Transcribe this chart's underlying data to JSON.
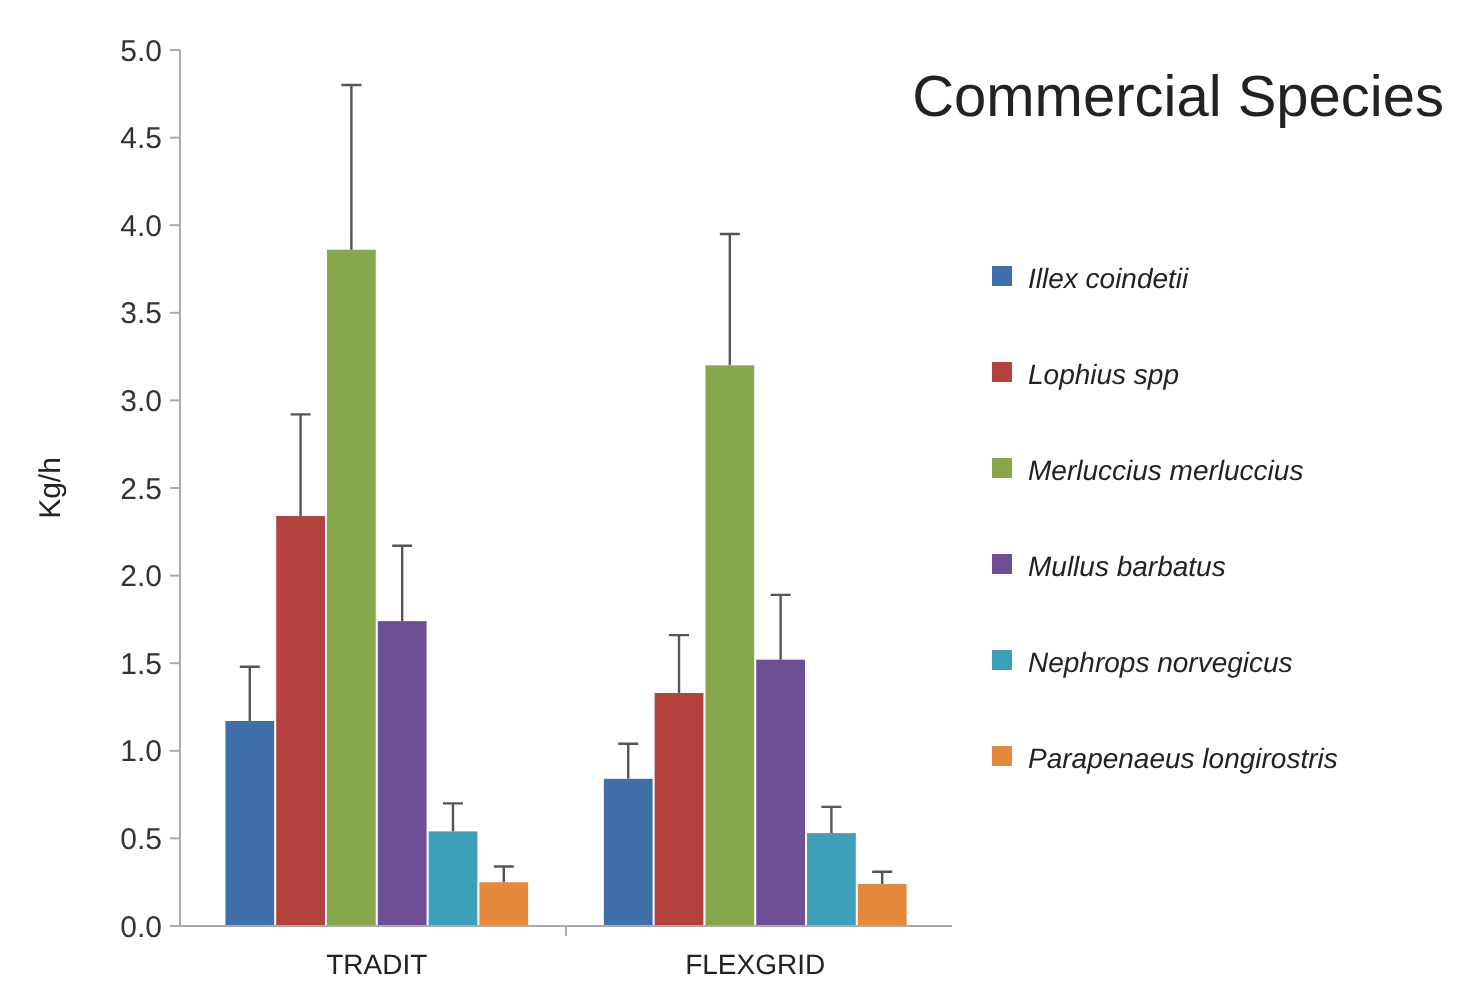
{
  "chart_data": {
    "type": "bar",
    "title": "Commercial Species",
    "ylabel": "Kg/h",
    "categories": [
      "TRADIT",
      "FLEXGRID"
    ],
    "series": [
      {
        "name": "Illex coindetii",
        "color": "#3e6fa8",
        "values": [
          1.17,
          0.84
        ],
        "errors": [
          [
            1.17,
            1.48
          ],
          [
            0.84,
            1.04
          ]
        ]
      },
      {
        "name": "Lophius spp",
        "color": "#b5413e",
        "values": [
          2.34,
          1.33
        ],
        "errors": [
          [
            2.34,
            2.92
          ],
          [
            1.33,
            1.66
          ]
        ]
      },
      {
        "name": "Merluccius merluccius",
        "color": "#86a84a",
        "values": [
          3.86,
          3.2
        ],
        "errors": [
          [
            3.86,
            4.8
          ],
          [
            3.2,
            3.95
          ]
        ]
      },
      {
        "name": "Mullus barbatus",
        "color": "#6e4f95",
        "values": [
          1.74,
          1.52
        ],
        "errors": [
          [
            1.74,
            2.17
          ],
          [
            1.52,
            1.89
          ]
        ]
      },
      {
        "name": "Nephrops norvegicus",
        "color": "#3ca0b8",
        "values": [
          0.54,
          0.53
        ],
        "errors": [
          [
            0.54,
            0.7
          ],
          [
            0.53,
            0.68
          ]
        ]
      },
      {
        "name": "Parapenaeus longirostris",
        "color": "#e58a3a",
        "values": [
          0.25,
          0.24
        ],
        "errors": [
          [
            0.25,
            0.34
          ],
          [
            0.24,
            0.31
          ]
        ]
      }
    ],
    "ylim": [
      0,
      5
    ],
    "yticks": [
      {
        "value": 0,
        "label": "0.0"
      },
      {
        "value": 0.5,
        "label": "0.5"
      },
      {
        "value": 1,
        "label": "1.0"
      },
      {
        "value": 1.5,
        "label": "1.5"
      },
      {
        "value": 2,
        "label": "2.0"
      },
      {
        "value": 2.5,
        "label": "2.5"
      },
      {
        "value": 3,
        "label": "3.0"
      },
      {
        "value": 3.5,
        "label": "3.5"
      },
      {
        "value": 4,
        "label": "4.0"
      },
      {
        "value": 4.5,
        "label": "4.5"
      },
      {
        "value": 5,
        "label": "5.0"
      }
    ],
    "grid": false,
    "legend": "right"
  }
}
